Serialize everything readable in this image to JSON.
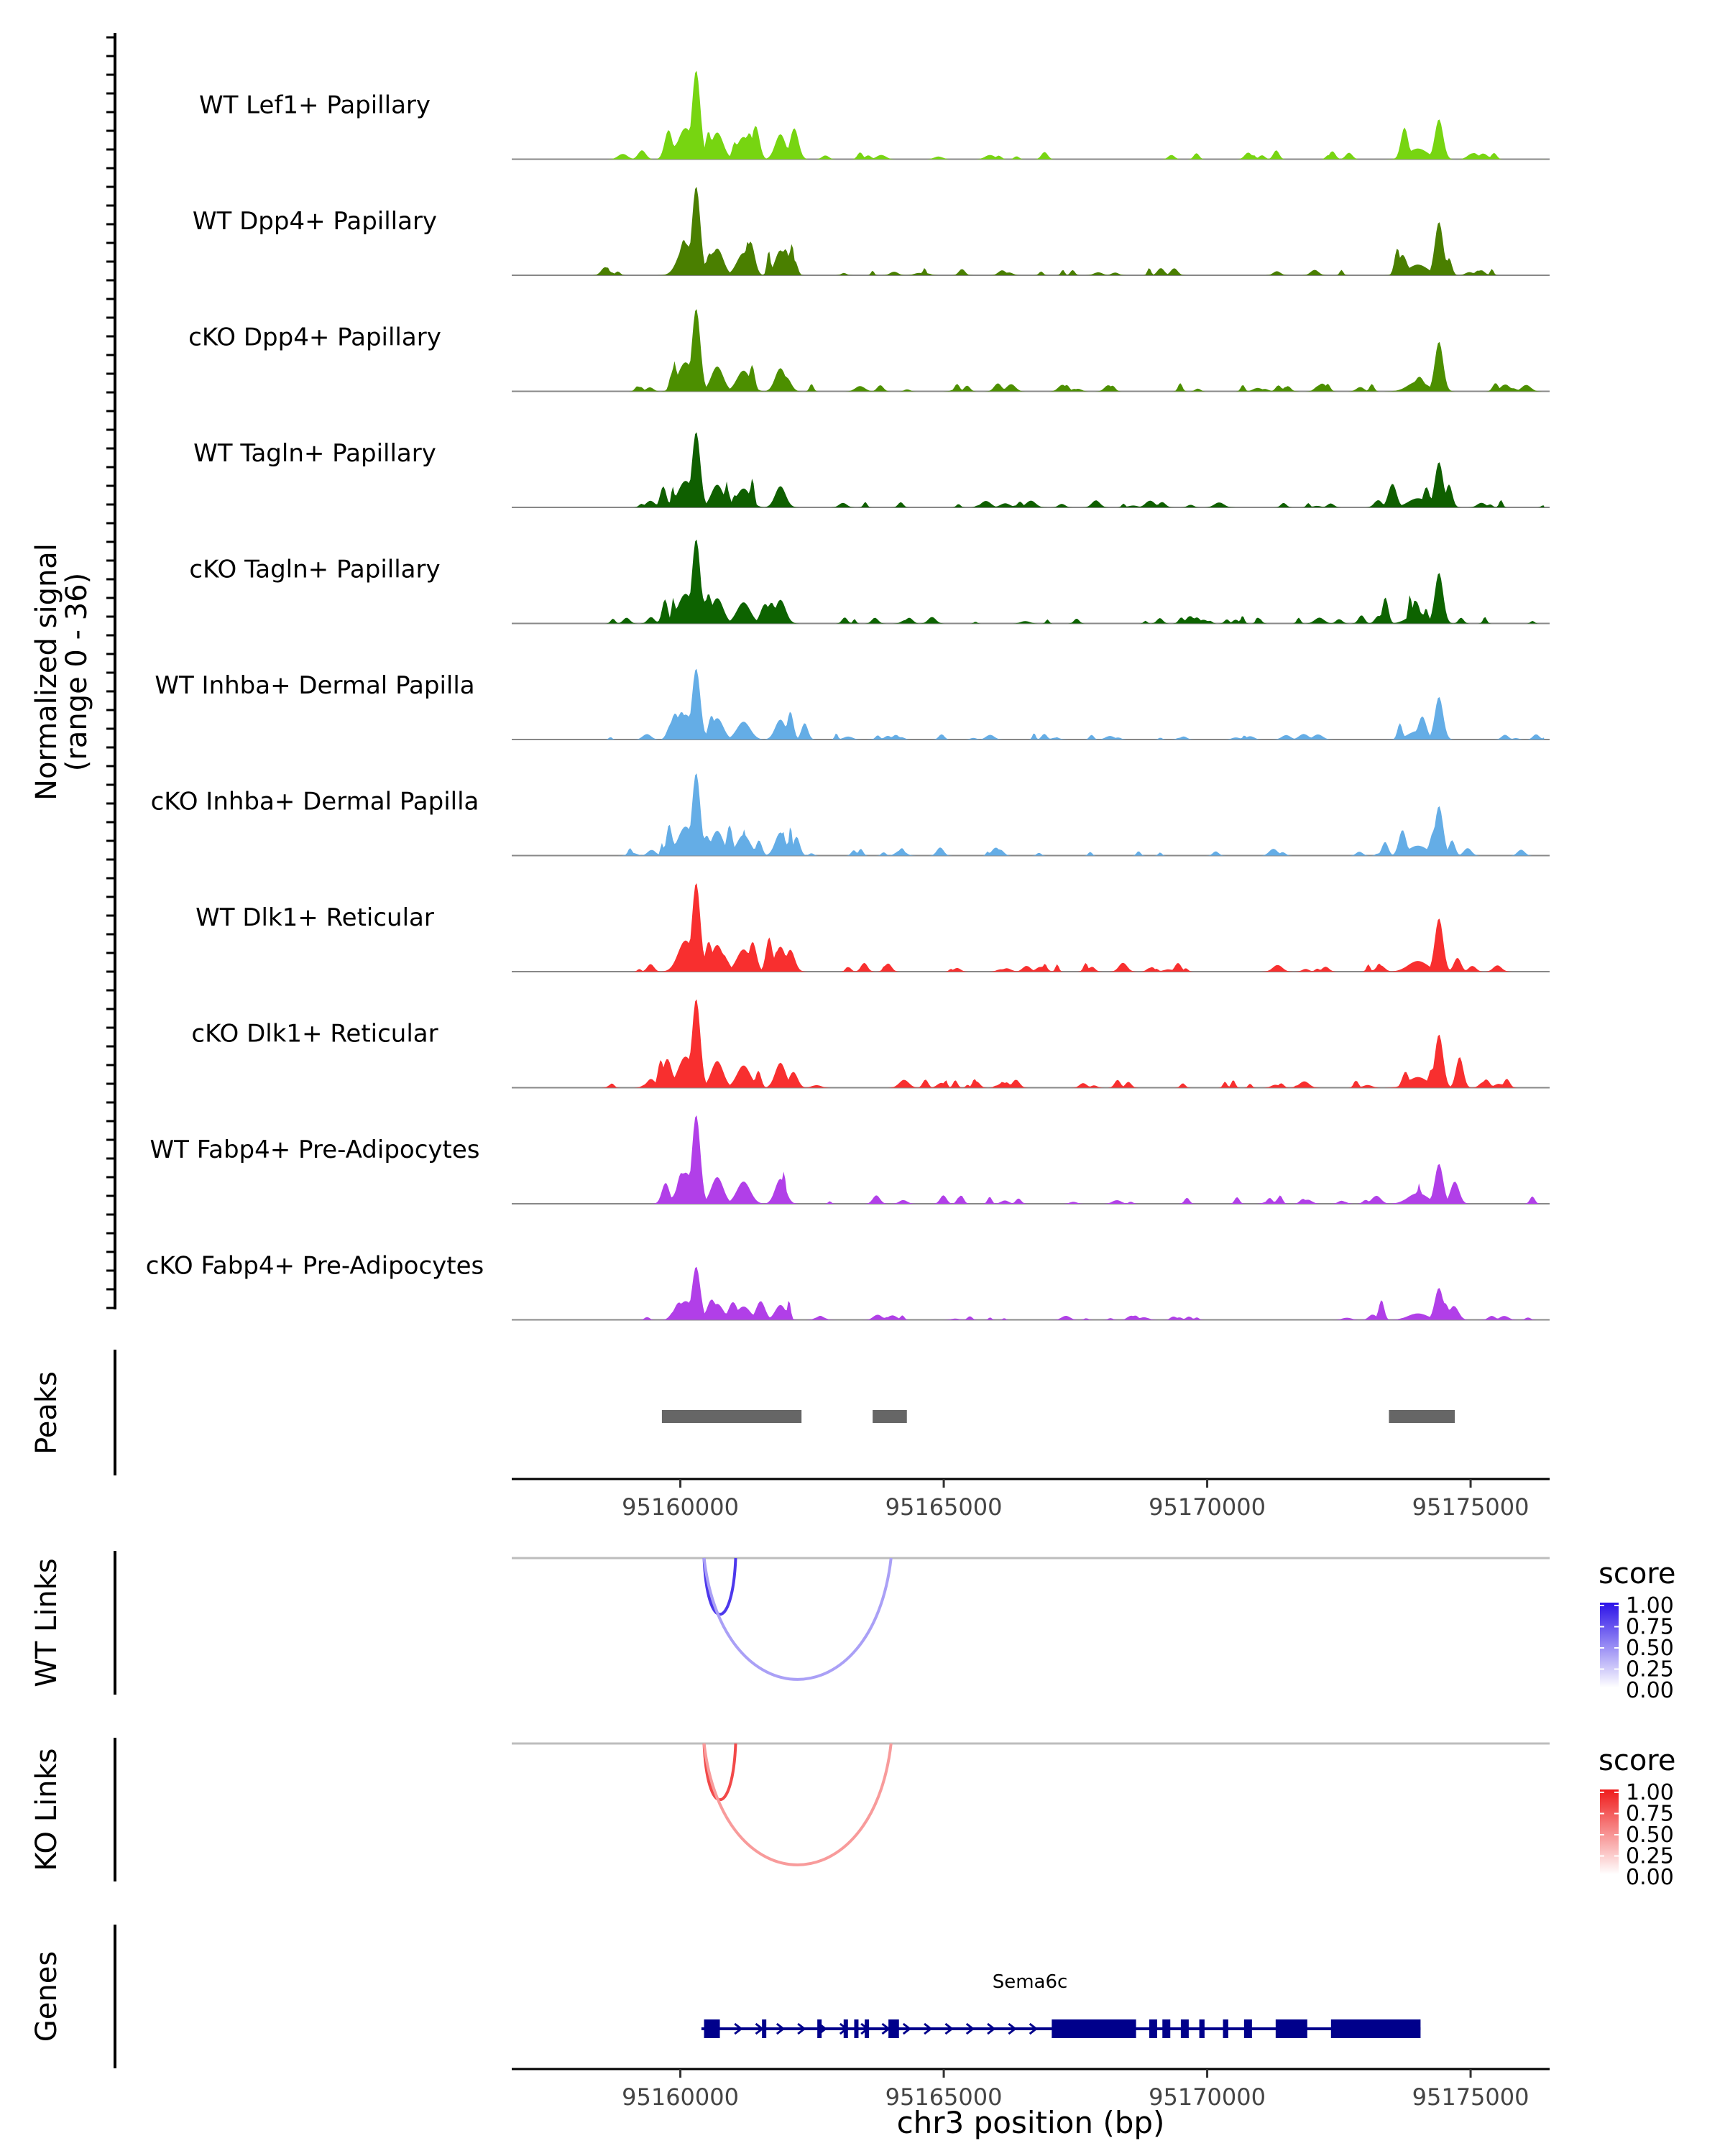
{
  "chart_data": {
    "type": "area",
    "title": "",
    "chromosome": "chr3",
    "xlabel": "chr3 position (bp)",
    "xlim": [
      95156800,
      95176500
    ],
    "x_ticks": [
      95160000,
      95165000,
      95170000,
      95175000
    ],
    "x_tick_labels": [
      "95160000",
      "95165000",
      "95170000",
      "95175000"
    ],
    "coverage": {
      "ylabel_line1": "Normalized signal",
      "ylabel_line2": "(range 0 - 36)",
      "ylim": [
        0,
        36
      ],
      "series": [
        {
          "name": "WT Lef1+ Papillary",
          "color": "#77D511",
          "intensity": 1.0,
          "density": 0.55,
          "hasB": false,
          "seed": 11
        },
        {
          "name": "WT Dpp4+ Papillary",
          "color": "#4A7F00",
          "intensity": 1.0,
          "density": 0.8,
          "hasB": true,
          "seed": 23
        },
        {
          "name": "cKO Dpp4+ Papillary",
          "color": "#4C8F00",
          "intensity": 0.93,
          "density": 0.75,
          "hasB": true,
          "seed": 37
        },
        {
          "name": "WT Tagln+ Papillary",
          "color": "#0F5F00",
          "intensity": 0.85,
          "density": 0.7,
          "hasB": true,
          "seed": 41
        },
        {
          "name": "cKO Tagln+ Papillary",
          "color": "#0D6300",
          "intensity": 0.95,
          "density": 0.8,
          "hasB": true,
          "seed": 53
        },
        {
          "name": "WT Inhba+ Dermal Papilla",
          "color": "#64ADE6",
          "intensity": 0.8,
          "density": 0.7,
          "hasB": true,
          "seed": 67
        },
        {
          "name": "cKO Inhba+ Dermal Papilla",
          "color": "#64ADE6",
          "intensity": 0.93,
          "density": 0.65,
          "hasB": true,
          "seed": 71
        },
        {
          "name": "WT Dlk1+ Reticular",
          "color": "#F82F2F",
          "intensity": 1.0,
          "density": 0.8,
          "hasB": true,
          "seed": 83
        },
        {
          "name": "cKO Dlk1+ Reticular",
          "color": "#F82F2F",
          "intensity": 1.0,
          "density": 0.9,
          "hasB": true,
          "seed": 97
        },
        {
          "name": "WT Fabp4+ Pre-Adipocytes",
          "color": "#B13FE8",
          "intensity": 1.0,
          "density": 0.55,
          "hasB": false,
          "seed": 101
        },
        {
          "name": "cKO Fabp4+ Pre-Adipocytes",
          "color": "#B13FE8",
          "intensity": 0.6,
          "density": 0.7,
          "hasB": true,
          "seed": 113
        }
      ]
    },
    "peaks": {
      "label": "Peaks",
      "color": "#666666",
      "regions": [
        [
          95159650,
          95162300
        ],
        [
          95163650,
          95164300
        ],
        [
          95173450,
          95174700
        ]
      ]
    },
    "wt_links": {
      "label": "WT Links",
      "legend_title": "score",
      "legend_ticks": [
        "1.00",
        "0.75",
        "0.50",
        "0.25",
        "0.00"
      ],
      "color_low": "#FFFFFF",
      "color_high": "#2B12E8",
      "links": [
        {
          "start": 95160450,
          "end": 95161050,
          "score": 0.8
        },
        {
          "start": 95160450,
          "end": 95164000,
          "score": 0.25
        }
      ]
    },
    "ko_links": {
      "label": "KO Links",
      "legend_title": "score",
      "legend_ticks": [
        "1.00",
        "0.75",
        "0.50",
        "0.25",
        "0.00"
      ],
      "color_low": "#FFFFFF",
      "color_high": "#EF1B1B",
      "links": [
        {
          "start": 95160450,
          "end": 95161050,
          "score": 0.75
        },
        {
          "start": 95160450,
          "end": 95164000,
          "score": 0.3
        }
      ]
    },
    "genes": {
      "label": "Genes",
      "color": "#00008B",
      "gene_name": "Sema6c",
      "start": 95160400,
      "end": 95174050,
      "exons": [
        [
          95160450,
          95160750
        ],
        [
          95161550,
          95161600
        ],
        [
          95162600,
          95162650
        ],
        [
          95163100,
          95163150
        ],
        [
          95163300,
          95163380
        ],
        [
          95163500,
          95163560
        ],
        [
          95163950,
          95164150
        ],
        [
          95167050,
          95168650
        ],
        [
          95168900,
          95169050
        ],
        [
          95169150,
          95169300
        ],
        [
          95169500,
          95169650
        ],
        [
          95169850,
          95169950
        ],
        [
          95170300,
          95170400
        ],
        [
          95170700,
          95170850
        ],
        [
          95171300,
          95171900
        ],
        [
          95172350,
          95174050
        ]
      ]
    }
  }
}
